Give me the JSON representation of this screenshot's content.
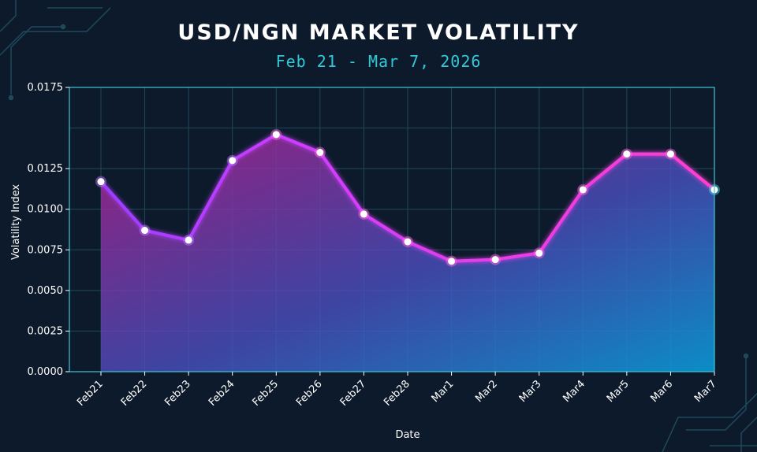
{
  "title": "USD/NGN MARKET VOLATILITY",
  "subtitle": "Feb 21 - Mar 7, 2026",
  "colors": {
    "background": "#0d1a2b",
    "line_start": "#9b3cff",
    "line_end": "#ff3fd0",
    "area_top": "#b0208f",
    "area_bottom": "#0b8fd6",
    "grid": "#1f4a5a",
    "frame": "#3fc6d4",
    "subtitle": "#33c8d6"
  },
  "chart_data": {
    "type": "area",
    "title": "USD/NGN MARKET VOLATILITY",
    "subtitle": "Feb 21 - Mar 7, 2026",
    "xlabel": "Date",
    "ylabel": "Volatility Index",
    "categories": [
      "Feb21",
      "Feb22",
      "Feb23",
      "Feb24",
      "Feb25",
      "Feb26",
      "Feb27",
      "Feb28",
      "Mar1",
      "Mar2",
      "Mar3",
      "Mar4",
      "Mar5",
      "Mar6",
      "Mar7"
    ],
    "values": [
      0.0117,
      0.0087,
      0.0081,
      0.013,
      0.0146,
      0.0135,
      0.0097,
      0.008,
      0.0068,
      0.0069,
      0.0073,
      0.0112,
      0.0134,
      0.0134,
      0.0112
    ],
    "ylim": [
      0,
      0.0175
    ],
    "yticks": [
      "0.0000",
      "0.0025",
      "0.0050",
      "0.0075",
      "0.0100",
      "0.0125",
      "0.0175"
    ],
    "ytick_values": [
      0,
      0.0025,
      0.005,
      0.0075,
      0.01,
      0.0125,
      0.0175
    ],
    "grid": true,
    "legend": "none"
  }
}
